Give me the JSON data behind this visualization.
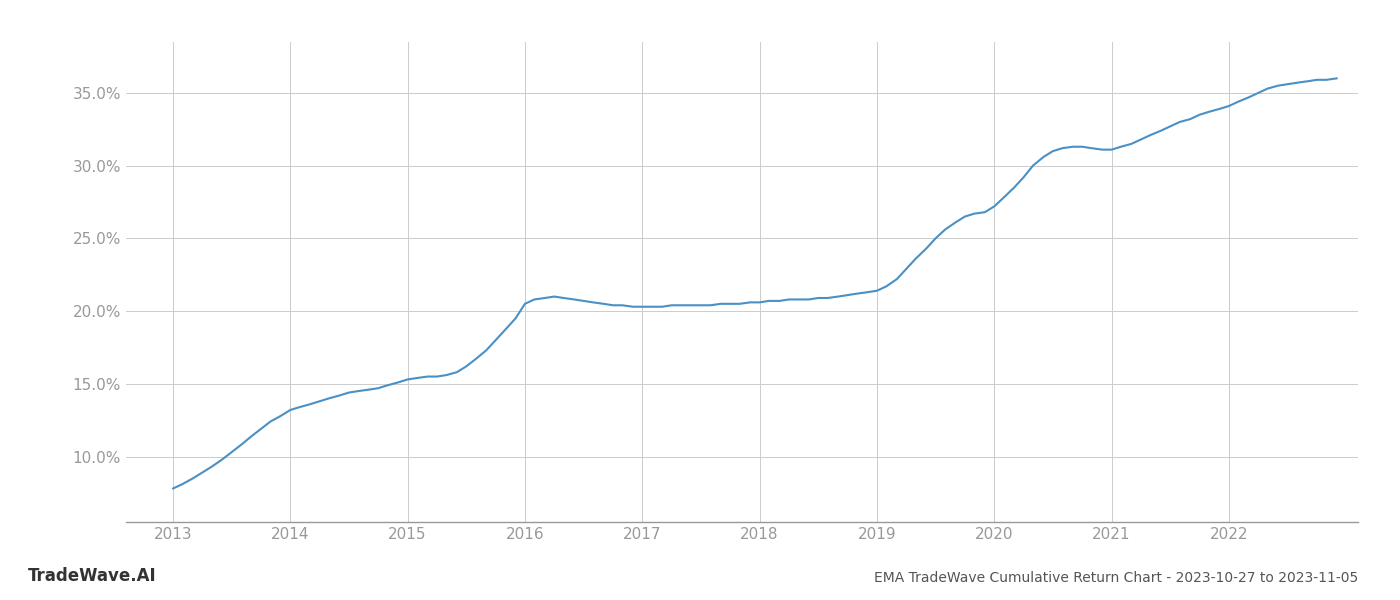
{
  "title": "EMA TradeWave Cumulative Return Chart - 2023-10-27 to 2023-11-05",
  "watermark": "TradeWave.AI",
  "line_color": "#4a90c4",
  "background_color": "#ffffff",
  "grid_color": "#cccccc",
  "x_years": [
    2013,
    2014,
    2015,
    2016,
    2017,
    2018,
    2019,
    2020,
    2021,
    2022
  ],
  "x_values": [
    2013.0,
    2013.08,
    2013.17,
    2013.25,
    2013.33,
    2013.42,
    2013.5,
    2013.58,
    2013.67,
    2013.75,
    2013.83,
    2013.92,
    2014.0,
    2014.08,
    2014.17,
    2014.25,
    2014.33,
    2014.42,
    2014.5,
    2014.58,
    2014.67,
    2014.75,
    2014.83,
    2014.92,
    2015.0,
    2015.08,
    2015.17,
    2015.25,
    2015.33,
    2015.42,
    2015.5,
    2015.58,
    2015.67,
    2015.75,
    2015.83,
    2015.92,
    2016.0,
    2016.08,
    2016.17,
    2016.25,
    2016.33,
    2016.42,
    2016.5,
    2016.58,
    2016.67,
    2016.75,
    2016.83,
    2016.92,
    2017.0,
    2017.08,
    2017.17,
    2017.25,
    2017.33,
    2017.42,
    2017.5,
    2017.58,
    2017.67,
    2017.75,
    2017.83,
    2017.92,
    2018.0,
    2018.08,
    2018.17,
    2018.25,
    2018.33,
    2018.42,
    2018.5,
    2018.58,
    2018.67,
    2018.75,
    2018.83,
    2018.92,
    2019.0,
    2019.08,
    2019.17,
    2019.25,
    2019.33,
    2019.42,
    2019.5,
    2019.58,
    2019.67,
    2019.75,
    2019.83,
    2019.92,
    2020.0,
    2020.08,
    2020.17,
    2020.25,
    2020.33,
    2020.42,
    2020.5,
    2020.58,
    2020.67,
    2020.75,
    2020.83,
    2020.92,
    2021.0,
    2021.08,
    2021.17,
    2021.25,
    2021.33,
    2021.42,
    2021.5,
    2021.58,
    2021.67,
    2021.75,
    2021.83,
    2021.92,
    2022.0,
    2022.08,
    2022.17,
    2022.25,
    2022.33,
    2022.42,
    2022.5,
    2022.58,
    2022.67,
    2022.75,
    2022.83,
    2022.92
  ],
  "y_values": [
    7.8,
    8.1,
    8.5,
    8.9,
    9.3,
    9.8,
    10.3,
    10.8,
    11.4,
    11.9,
    12.4,
    12.8,
    13.2,
    13.4,
    13.6,
    13.8,
    14.0,
    14.2,
    14.4,
    14.5,
    14.6,
    14.7,
    14.9,
    15.1,
    15.3,
    15.4,
    15.5,
    15.5,
    15.6,
    15.8,
    16.2,
    16.7,
    17.3,
    18.0,
    18.7,
    19.5,
    20.5,
    20.8,
    20.9,
    21.0,
    20.9,
    20.8,
    20.7,
    20.6,
    20.5,
    20.4,
    20.4,
    20.3,
    20.3,
    20.3,
    20.3,
    20.4,
    20.4,
    20.4,
    20.4,
    20.4,
    20.5,
    20.5,
    20.5,
    20.6,
    20.6,
    20.7,
    20.7,
    20.8,
    20.8,
    20.8,
    20.9,
    20.9,
    21.0,
    21.1,
    21.2,
    21.3,
    21.4,
    21.7,
    22.2,
    22.9,
    23.6,
    24.3,
    25.0,
    25.6,
    26.1,
    26.5,
    26.7,
    26.8,
    27.2,
    27.8,
    28.5,
    29.2,
    30.0,
    30.6,
    31.0,
    31.2,
    31.3,
    31.3,
    31.2,
    31.1,
    31.1,
    31.3,
    31.5,
    31.8,
    32.1,
    32.4,
    32.7,
    33.0,
    33.2,
    33.5,
    33.7,
    33.9,
    34.1,
    34.4,
    34.7,
    35.0,
    35.3,
    35.5,
    35.6,
    35.7,
    35.8,
    35.9,
    35.9,
    36.0
  ],
  "yticks": [
    10.0,
    15.0,
    20.0,
    25.0,
    30.0,
    35.0
  ],
  "ylim": [
    5.5,
    38.5
  ],
  "xlim": [
    2012.6,
    2023.1
  ],
  "title_fontsize": 10,
  "tick_fontsize": 11,
  "watermark_fontsize": 12,
  "line_width": 1.5,
  "axis_color": "#999999",
  "tick_color": "#999999"
}
